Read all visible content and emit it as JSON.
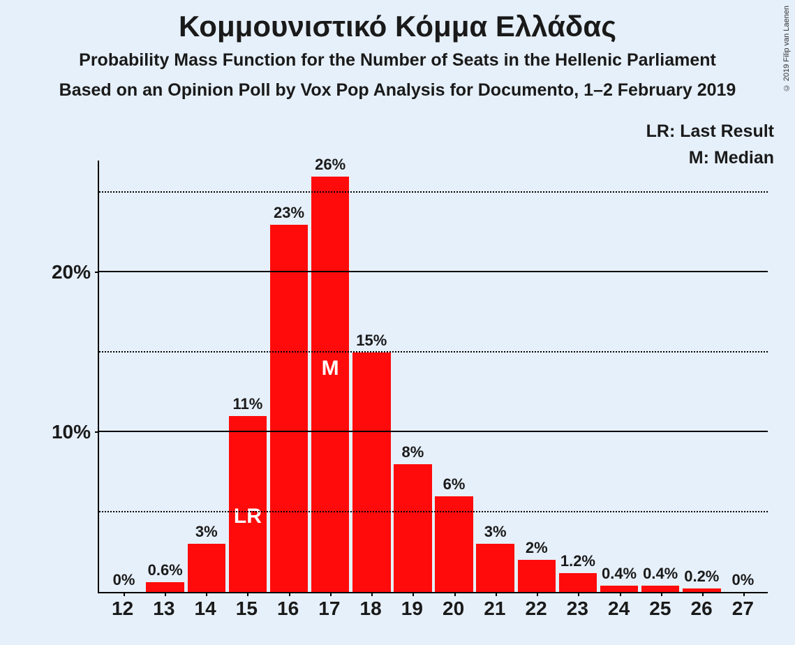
{
  "title": "Κομμουνιστικό Κόμμα Ελλάδας",
  "subtitle1": "Probability Mass Function for the Number of Seats in the Hellenic Parliament",
  "subtitle2": "Based on an Opinion Poll by Vox Pop Analysis for Documento, 1–2 February 2019",
  "legend": {
    "lr": "LR: Last Result",
    "m": "M: Median"
  },
  "credit": "© 2019 Filip van Laenen",
  "chart": {
    "type": "bar",
    "categories": [
      "12",
      "13",
      "14",
      "15",
      "16",
      "17",
      "18",
      "19",
      "20",
      "21",
      "22",
      "23",
      "24",
      "25",
      "26",
      "27"
    ],
    "values_percent": [
      0,
      0.6,
      3,
      11,
      23,
      26,
      15,
      8,
      6,
      3,
      2,
      1.2,
      0.4,
      0.4,
      0.2,
      0
    ],
    "value_labels": [
      "0%",
      "0.6%",
      "3%",
      "11%",
      "23%",
      "26%",
      "15%",
      "8%",
      "6%",
      "3%",
      "2%",
      "1.2%",
      "0.4%",
      "0.4%",
      "0.2%",
      "0%"
    ],
    "bar_color": "#ff0b0b",
    "background_color": "#e6f0fa",
    "axis_color": "#000000",
    "dotted_grid_color": "#000000",
    "ymax": 27,
    "y_major_ticks": [
      10,
      20
    ],
    "y_major_labels": [
      "10%",
      "20%"
    ],
    "y_minor_ticks": [
      5,
      15,
      25
    ],
    "bar_width_ratio": 0.92,
    "annotations": [
      {
        "category": "15",
        "text": "LR",
        "y_percent": 4.7
      },
      {
        "category": "17",
        "text": "M",
        "y_percent": 14
      }
    ],
    "title_fontsize": 42,
    "subtitle_fontsize": 25,
    "axis_label_fontsize": 28,
    "value_label_fontsize": 22,
    "annotation_fontsize": 30,
    "annotation_color": "#ffffff",
    "text_color": "#1a1a1a"
  }
}
